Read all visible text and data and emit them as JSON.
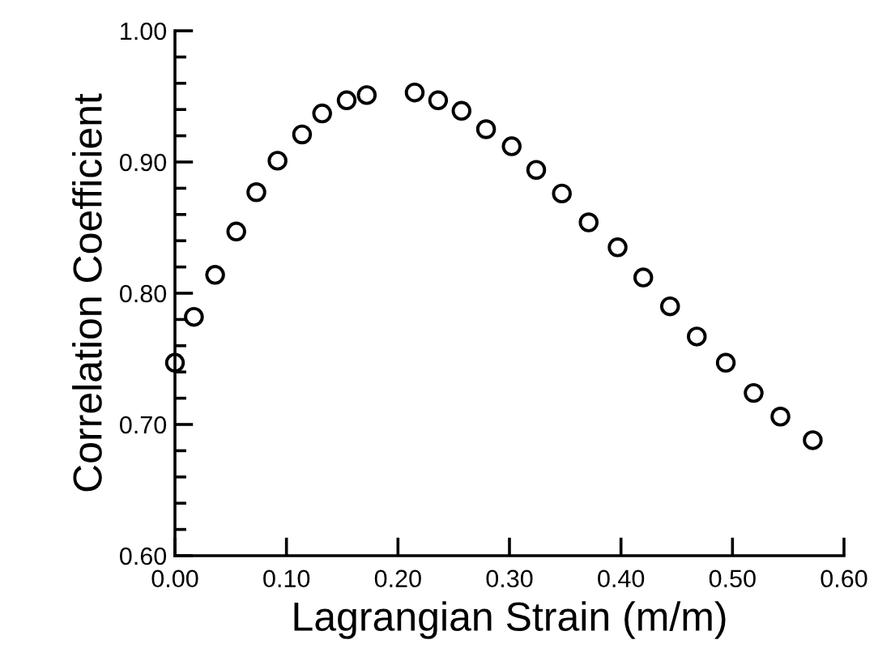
{
  "chart_data": {
    "type": "scatter",
    "xlabel": "Lagrangian Strain (m/m)",
    "ylabel": "Correlation Coefficient",
    "x": [
      0.0,
      0.017,
      0.036,
      0.055,
      0.073,
      0.092,
      0.114,
      0.132,
      0.154,
      0.172,
      0.215,
      0.236,
      0.257,
      0.279,
      0.302,
      0.324,
      0.347,
      0.371,
      0.397,
      0.42,
      0.444,
      0.468,
      0.494,
      0.519,
      0.543,
      0.572
    ],
    "values": [
      0.747,
      0.782,
      0.814,
      0.847,
      0.877,
      0.901,
      0.921,
      0.937,
      0.947,
      0.951,
      0.953,
      0.947,
      0.939,
      0.925,
      0.912,
      0.894,
      0.876,
      0.854,
      0.835,
      0.812,
      0.79,
      0.767,
      0.747,
      0.724,
      0.706,
      0.688
    ],
    "color": "#000000",
    "marker": "circle",
    "xlim": [
      0,
      0.6
    ],
    "ylim": [
      0.6,
      1.0
    ],
    "xticks": [
      {
        "value": 0,
        "label": "0.00"
      },
      {
        "value": 0.1,
        "label": "0.10"
      },
      {
        "value": 0.2,
        "label": "0.20"
      },
      {
        "value": 0.3,
        "label": "0.30"
      },
      {
        "value": 0.4,
        "label": "0.40"
      },
      {
        "value": 0.5,
        "label": "0.50"
      },
      {
        "value": 0.6,
        "label": "0.60"
      }
    ],
    "yticks": [
      {
        "value": 0.6,
        "label": "0.60"
      },
      {
        "value": 0.7,
        "label": "0.70"
      },
      {
        "value": 0.8,
        "label": "0.80"
      },
      {
        "value": 0.9,
        "label": "0.90"
      },
      {
        "value": 1.0,
        "label": "1.00"
      }
    ],
    "grid": false
  }
}
